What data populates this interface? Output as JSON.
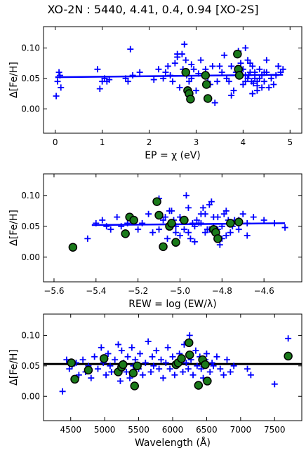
{
  "figure_title": "XO-2N : 5440, 4.41, 0.4, 0.94 [XO-2S]",
  "colors": {
    "cross": "#0000ff",
    "fit_line": "#0000ff",
    "mean_line": "#000000",
    "circle_fill": "#1a7a1a",
    "circle_edge": "#000000"
  },
  "chart_data": [
    {
      "type": "scatter",
      "xlabel": "EP = χ (eV)",
      "ylabel": "Δ[Fe/H]",
      "xlim": [
        -0.25,
        5.25
      ],
      "ylim": [
        -0.04,
        0.135
      ],
      "xticks": [
        0,
        1,
        2,
        3,
        4,
        5
      ],
      "xtick_labels": [
        "0",
        "1",
        "2",
        "3",
        "4",
        "5"
      ],
      "yticks": [
        0.0,
        0.05,
        0.1
      ],
      "ytick_labels": [
        "0.00",
        "0.05",
        "0.10"
      ],
      "fit_line": {
        "x": [
          0.0,
          4.85
        ],
        "y": [
          0.052,
          0.056
        ]
      },
      "crosses": {
        "x": [
          0.02,
          0.05,
          0.08,
          0.1,
          0.12,
          0.9,
          0.95,
          1.0,
          1.05,
          1.1,
          1.15,
          1.5,
          1.55,
          1.6,
          1.65,
          1.8,
          2.1,
          2.2,
          2.3,
          2.35,
          2.4,
          2.45,
          2.5,
          2.55,
          2.6,
          2.65,
          2.7,
          2.72,
          2.75,
          2.78,
          2.8,
          2.85,
          2.9,
          2.95,
          3.0,
          3.05,
          3.1,
          3.15,
          3.2,
          3.25,
          3.3,
          3.35,
          3.4,
          3.5,
          3.55,
          3.6,
          3.65,
          3.7,
          3.75,
          3.8,
          3.85,
          3.9,
          3.95,
          4.0,
          4.05,
          4.1,
          4.12,
          4.15,
          4.18,
          4.2,
          4.22,
          4.25,
          4.3,
          4.35,
          4.4,
          4.45,
          4.5,
          4.55,
          4.6,
          4.65,
          4.7,
          4.75,
          4.8,
          4.85,
          4.05,
          4.1,
          4.2,
          4.3,
          4.0,
          4.15,
          4.25,
          4.35,
          4.4,
          4.5,
          3.95,
          4.05,
          4.3,
          4.45,
          2.6,
          2.9,
          3.45,
          3.75
        ],
        "y": [
          0.021,
          0.045,
          0.06,
          0.055,
          0.035,
          0.065,
          0.033,
          0.045,
          0.05,
          0.045,
          0.048,
          0.05,
          0.045,
          0.098,
          0.055,
          0.06,
          0.048,
          0.065,
          0.05,
          0.06,
          0.07,
          0.055,
          0.045,
          0.075,
          0.085,
          0.035,
          0.09,
          0.065,
          0.106,
          0.08,
          0.055,
          0.045,
          0.05,
          0.065,
          0.03,
          0.058,
          0.08,
          0.055,
          0.065,
          0.045,
          0.04,
          0.07,
          0.01,
          0.07,
          0.06,
          0.088,
          0.05,
          0.045,
          0.07,
          0.03,
          0.06,
          0.095,
          0.075,
          0.065,
          0.1,
          0.05,
          0.055,
          0.06,
          0.045,
          0.07,
          0.042,
          0.05,
          0.03,
          0.065,
          0.055,
          0.045,
          0.06,
          0.035,
          0.05,
          0.04,
          0.055,
          0.07,
          0.06,
          0.065,
          0.045,
          0.08,
          0.025,
          0.045,
          0.04,
          0.075,
          0.06,
          0.05,
          0.035,
          0.08,
          0.065,
          0.055,
          0.038,
          0.06,
          0.09,
          0.073,
          0.045,
          0.022
        ],
        "count_note": ""
      },
      "circles": {
        "x": [
          2.78,
          2.82,
          2.85,
          2.88,
          3.2,
          3.22,
          3.25,
          3.88,
          3.9,
          3.92
        ],
        "y": [
          0.06,
          0.03,
          0.025,
          0.016,
          0.055,
          0.04,
          0.017,
          0.09,
          0.065,
          0.055
        ]
      }
    },
    {
      "type": "scatter",
      "xlabel": "REW = log (EW/λ)",
      "ylabel": "Δ[Fe/H]",
      "xlim": [
        -5.65,
        -4.42
      ],
      "ylim": [
        -0.04,
        0.135
      ],
      "xticks": [
        -5.6,
        -5.4,
        -5.2,
        -5.0,
        -4.8,
        -4.6
      ],
      "xtick_labels": [
        "−5.6",
        "−5.4",
        "−5.2",
        "−5.0",
        "−4.8",
        "−4.6"
      ],
      "yticks": [
        0.0,
        0.05,
        0.1
      ],
      "ytick_labels": [
        "0.00",
        "0.05",
        "0.10"
      ],
      "fit_line": {
        "x": [
          -5.42,
          -4.5
        ],
        "y": [
          0.052,
          0.055
        ]
      },
      "crosses": {
        "x": [
          -5.44,
          -5.4,
          -5.37,
          -5.35,
          -5.33,
          -5.3,
          -5.28,
          -5.25,
          -5.23,
          -5.2,
          -5.18,
          -5.15,
          -5.13,
          -5.1,
          -5.08,
          -5.06,
          -5.04,
          -5.02,
          -5.0,
          -4.98,
          -4.96,
          -4.94,
          -4.92,
          -4.9,
          -4.88,
          -4.86,
          -4.84,
          -4.82,
          -4.8,
          -4.78,
          -4.76,
          -4.74,
          -4.72,
          -4.7,
          -4.68,
          -4.65,
          -4.6,
          -4.55,
          -4.5,
          -5.0,
          -4.97,
          -4.93,
          -4.9,
          -4.87,
          -4.85,
          -4.83,
          -4.81,
          -4.79,
          -4.77,
          -4.75,
          -5.05,
          -5.02,
          -4.99,
          -4.95,
          -4.91,
          -4.89,
          -4.86,
          -4.84,
          -4.8,
          -4.78,
          -5.1,
          -5.07,
          -5.03,
          -4.96,
          -4.93,
          -4.88,
          -4.82,
          -4.76,
          -4.72,
          -4.68
        ],
        "y": [
          0.03,
          0.055,
          0.06,
          0.05,
          0.045,
          0.065,
          0.05,
          0.055,
          0.06,
          0.045,
          0.055,
          0.07,
          0.04,
          0.095,
          0.06,
          0.03,
          0.075,
          0.05,
          0.065,
          0.045,
          0.08,
          0.055,
          0.06,
          0.07,
          0.04,
          0.085,
          0.05,
          0.065,
          0.03,
          0.075,
          0.055,
          0.06,
          0.045,
          0.07,
          0.035,
          0.065,
          0.06,
          0.055,
          0.048,
          0.035,
          0.1,
          0.025,
          0.055,
          0.045,
          0.09,
          0.04,
          0.02,
          0.07,
          0.06,
          0.05,
          0.075,
          0.04,
          0.06,
          0.03,
          0.055,
          0.08,
          0.045,
          0.065,
          0.05,
          0.035,
          0.045,
          0.065,
          0.06,
          0.04,
          0.05,
          0.07,
          0.045,
          0.04,
          0.06,
          0.055
        ]
      },
      "circles": {
        "x": [
          -5.51,
          -5.26,
          -5.24,
          -5.22,
          -5.11,
          -5.1,
          -5.08,
          -5.05,
          -5.04,
          -5.02,
          -4.98,
          -4.84,
          -4.83,
          -4.82,
          -4.76,
          -4.72
        ],
        "y": [
          0.016,
          0.038,
          0.065,
          0.06,
          0.09,
          0.068,
          0.017,
          0.05,
          0.055,
          0.024,
          0.06,
          0.045,
          0.04,
          0.03,
          0.055,
          0.057
        ]
      }
    },
    {
      "type": "scatter",
      "xlabel": "Wavelength (Å)",
      "ylabel": "Δ[Fe/H]",
      "xlim": [
        4100,
        7900
      ],
      "ylim": [
        -0.04,
        0.135
      ],
      "xticks": [
        4500,
        5000,
        5500,
        6000,
        6500,
        7000,
        7500
      ],
      "xtick_labels": [
        "4500",
        "5000",
        "5500",
        "6000",
        "6500",
        "7000",
        "7500"
      ],
      "yticks": [
        0.0,
        0.05,
        0.1
      ],
      "ytick_labels": [
        "0.00",
        "0.05",
        "0.10"
      ],
      "mean_line": {
        "y": 0.053
      },
      "crosses": {
        "x": [
          4380,
          4440,
          4480,
          4520,
          4580,
          4620,
          4680,
          4720,
          4760,
          4800,
          4850,
          4900,
          4950,
          4980,
          5020,
          5050,
          5080,
          5100,
          5150,
          5200,
          5230,
          5250,
          5280,
          5320,
          5340,
          5370,
          5400,
          5420,
          5450,
          5500,
          5520,
          5560,
          5600,
          5640,
          5680,
          5700,
          5720,
          5760,
          5800,
          5830,
          5860,
          5900,
          5930,
          5960,
          6000,
          6030,
          6060,
          6100,
          6130,
          6150,
          6170,
          6200,
          6230,
          6250,
          6270,
          6300,
          6340,
          6360,
          6400,
          6420,
          6450,
          6480,
          6500,
          6550,
          6580,
          6600,
          6650,
          6700,
          6750,
          6800,
          6850,
          6900,
          7100,
          7150,
          7500,
          7700
        ],
        "y": [
          0.008,
          0.06,
          0.045,
          0.05,
          0.055,
          0.035,
          0.06,
          0.04,
          0.05,
          0.03,
          0.065,
          0.045,
          0.08,
          0.055,
          0.035,
          0.07,
          0.05,
          0.04,
          0.06,
          0.085,
          0.025,
          0.075,
          0.055,
          0.04,
          0.065,
          0.03,
          0.08,
          0.05,
          0.06,
          0.045,
          0.07,
          0.035,
          0.055,
          0.09,
          0.04,
          0.065,
          0.05,
          0.075,
          0.045,
          0.06,
          0.03,
          0.055,
          0.08,
          0.045,
          0.065,
          0.035,
          0.05,
          0.07,
          0.06,
          0.04,
          0.085,
          0.055,
          0.045,
          0.1,
          0.06,
          0.035,
          0.075,
          0.05,
          0.065,
          0.045,
          0.03,
          0.06,
          0.07,
          0.04,
          0.055,
          0.05,
          0.065,
          0.045,
          0.035,
          0.06,
          0.04,
          0.05,
          0.045,
          0.035,
          0.02,
          0.095
        ]
      },
      "circles": {
        "x": [
          4510,
          4560,
          4760,
          4990,
          5200,
          5250,
          5270,
          5420,
          5440,
          5480,
          6050,
          6080,
          6130,
          6240,
          6250,
          6380,
          6440,
          6480,
          6510,
          7700
        ],
        "y": [
          0.055,
          0.028,
          0.043,
          0.062,
          0.04,
          0.048,
          0.052,
          0.038,
          0.017,
          0.05,
          0.052,
          0.055,
          0.062,
          0.088,
          0.068,
          0.018,
          0.06,
          0.052,
          0.025,
          0.066
        ]
      }
    }
  ]
}
